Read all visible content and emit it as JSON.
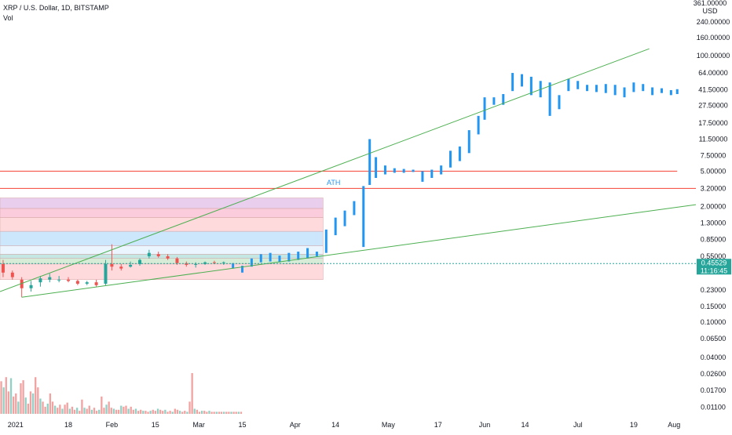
{
  "header": {
    "symbol_line": "XRP / U.S. Dollar, 1D, BITSTAMP",
    "volume_label": "Vol"
  },
  "price_scale": {
    "top_label_1": "361.00000",
    "top_label_2": "USD",
    "ticks": [
      "240.00000",
      "160.00000",
      "100.00000",
      "64.00000",
      "41.50000",
      "27.50000",
      "17.50000",
      "11.50000",
      "7.50000",
      "5.00000",
      "3.20000",
      "2.00000",
      "1.30000",
      "0.85000",
      "0.55000",
      "0.23000",
      "0.15000",
      "0.10000",
      "0.06500",
      "0.04000",
      "0.02600",
      "0.01700",
      "0.01100"
    ],
    "current_price": "0.45529",
    "countdown": "11:16:45"
  },
  "time_axis": {
    "ticks": [
      "2021",
      "18",
      "Feb",
      "15",
      "Mar",
      "15",
      "Apr",
      "14",
      "May",
      "17",
      "Jun",
      "14",
      "Jul",
      "19",
      "Aug"
    ]
  },
  "annotations": {
    "ath_label": "ATH"
  },
  "colors": {
    "up": "#26a69a",
    "down": "#ef5350",
    "projection": "#2196f3",
    "trend": "#4caf50",
    "level": "#f44336",
    "current_price_bg": "#26a69a",
    "vol_up": "#8fd1c5",
    "vol_down": "#f2a3a1"
  },
  "chart_data": {
    "type": "candlestick",
    "title": "XRP / U.S. Dollar, 1D, BITSTAMP",
    "y_scale": "log",
    "y_range": [
      0.0085,
      361
    ],
    "x_range": [
      "2020-12-27",
      "2021-08-08"
    ],
    "current_price": 0.45529,
    "grid": false,
    "candles": [
      {
        "date": "2020-12-28",
        "open": 0.45,
        "high": 0.5,
        "low": 0.32,
        "close": 0.36
      },
      {
        "date": "2020-12-31",
        "open": 0.36,
        "high": 0.38,
        "low": 0.3,
        "close": 0.32
      },
      {
        "date": "2021-01-03",
        "open": 0.3,
        "high": 0.32,
        "low": 0.19,
        "close": 0.24
      },
      {
        "date": "2021-01-06",
        "open": 0.24,
        "high": 0.29,
        "low": 0.22,
        "close": 0.26
      },
      {
        "date": "2021-01-09",
        "open": 0.28,
        "high": 0.33,
        "low": 0.25,
        "close": 0.31
      },
      {
        "date": "2021-01-12",
        "open": 0.3,
        "high": 0.35,
        "low": 0.28,
        "close": 0.32
      },
      {
        "date": "2021-01-15",
        "open": 0.3,
        "high": 0.33,
        "low": 0.28,
        "close": 0.3
      },
      {
        "date": "2021-01-18",
        "open": 0.3,
        "high": 0.32,
        "low": 0.28,
        "close": 0.29
      },
      {
        "date": "2021-01-21",
        "open": 0.29,
        "high": 0.3,
        "low": 0.26,
        "close": 0.27
      },
      {
        "date": "2021-01-24",
        "open": 0.27,
        "high": 0.29,
        "low": 0.26,
        "close": 0.28
      },
      {
        "date": "2021-01-27",
        "open": 0.28,
        "high": 0.3,
        "low": 0.25,
        "close": 0.26
      },
      {
        "date": "2021-01-30",
        "open": 0.27,
        "high": 0.5,
        "low": 0.26,
        "close": 0.45
      },
      {
        "date": "2021-02-01",
        "open": 0.45,
        "high": 0.75,
        "low": 0.38,
        "close": 0.42
      },
      {
        "date": "2021-02-04",
        "open": 0.42,
        "high": 0.45,
        "low": 0.38,
        "close": 0.4
      },
      {
        "date": "2021-02-07",
        "open": 0.42,
        "high": 0.48,
        "low": 0.41,
        "close": 0.44
      },
      {
        "date": "2021-02-10",
        "open": 0.45,
        "high": 0.52,
        "low": 0.43,
        "close": 0.5
      },
      {
        "date": "2021-02-13",
        "open": 0.55,
        "high": 0.65,
        "low": 0.52,
        "close": 0.6
      },
      {
        "date": "2021-02-16",
        "open": 0.58,
        "high": 0.62,
        "low": 0.53,
        "close": 0.55
      },
      {
        "date": "2021-02-19",
        "open": 0.55,
        "high": 0.58,
        "low": 0.5,
        "close": 0.52
      },
      {
        "date": "2021-02-22",
        "open": 0.52,
        "high": 0.54,
        "low": 0.44,
        "close": 0.46
      },
      {
        "date": "2021-02-25",
        "open": 0.46,
        "high": 0.48,
        "low": 0.42,
        "close": 0.44
      },
      {
        "date": "2021-02-28",
        "open": 0.44,
        "high": 0.47,
        "low": 0.41,
        "close": 0.45
      },
      {
        "date": "2021-03-03",
        "open": 0.45,
        "high": 0.48,
        "low": 0.44,
        "close": 0.47
      },
      {
        "date": "2021-03-06",
        "open": 0.47,
        "high": 0.49,
        "low": 0.45,
        "close": 0.46
      },
      {
        "date": "2021-03-09",
        "open": 0.46,
        "high": 0.48,
        "low": 0.44,
        "close": 0.47
      }
    ],
    "projection_bars": [
      {
        "date": "2021-03-12",
        "high": 0.46,
        "low": 0.4
      },
      {
        "date": "2021-03-15",
        "high": 0.43,
        "low": 0.36
      },
      {
        "date": "2021-03-18",
        "high": 0.52,
        "low": 0.42
      },
      {
        "date": "2021-03-21",
        "high": 0.58,
        "low": 0.47
      },
      {
        "date": "2021-03-24",
        "high": 0.6,
        "low": 0.48
      },
      {
        "date": "2021-03-27",
        "high": 0.56,
        "low": 0.47
      },
      {
        "date": "2021-03-30",
        "high": 0.6,
        "low": 0.48
      },
      {
        "date": "2021-04-02",
        "high": 0.62,
        "low": 0.5
      },
      {
        "date": "2021-04-05",
        "high": 0.68,
        "low": 0.52
      },
      {
        "date": "2021-04-08",
        "high": 0.62,
        "low": 0.55
      },
      {
        "date": "2021-04-11",
        "high": 1.1,
        "low": 0.6
      },
      {
        "date": "2021-04-14",
        "high": 1.5,
        "low": 0.95
      },
      {
        "date": "2021-04-17",
        "high": 1.8,
        "low": 1.2
      },
      {
        "date": "2021-04-20",
        "high": 2.3,
        "low": 1.6
      },
      {
        "date": "2021-04-23",
        "high": 3.4,
        "low": 0.7
      },
      {
        "date": "2021-04-25",
        "high": 11.5,
        "low": 3.5
      },
      {
        "date": "2021-04-27",
        "high": 7.2,
        "low": 4.2
      },
      {
        "date": "2021-04-30",
        "high": 5.8,
        "low": 4.6
      },
      {
        "date": "2021-05-03",
        "high": 5.4,
        "low": 4.8
      },
      {
        "date": "2021-05-06",
        "high": 5.3,
        "low": 4.8
      },
      {
        "date": "2021-05-09",
        "high": 5.2,
        "low": 4.9
      },
      {
        "date": "2021-05-12",
        "high": 5.0,
        "low": 3.8
      },
      {
        "date": "2021-05-15",
        "high": 5.2,
        "low": 4.2
      },
      {
        "date": "2021-05-18",
        "high": 5.8,
        "low": 4.6
      },
      {
        "date": "2021-05-21",
        "high": 8.5,
        "low": 5.5
      },
      {
        "date": "2021-05-24",
        "high": 9.5,
        "low": 6.5
      },
      {
        "date": "2021-05-27",
        "high": 14.5,
        "low": 8.0
      },
      {
        "date": "2021-05-30",
        "high": 21.0,
        "low": 13.0
      },
      {
        "date": "2021-06-01",
        "high": 34.0,
        "low": 19.0
      },
      {
        "date": "2021-06-04",
        "high": 34.0,
        "low": 28.0
      },
      {
        "date": "2021-06-07",
        "high": 37.0,
        "low": 28.0
      },
      {
        "date": "2021-06-10",
        "high": 64.0,
        "low": 40.0
      },
      {
        "date": "2021-06-13",
        "high": 62.0,
        "low": 45.0
      },
      {
        "date": "2021-06-16",
        "high": 58.0,
        "low": 36.0
      },
      {
        "date": "2021-06-19",
        "high": 52.0,
        "low": 34.0
      },
      {
        "date": "2021-06-22",
        "high": 50.0,
        "low": 21.0
      },
      {
        "date": "2021-06-25",
        "high": 36.0,
        "low": 25.0
      },
      {
        "date": "2021-06-28",
        "high": 55.0,
        "low": 40.0
      },
      {
        "date": "2021-07-01",
        "high": 52.0,
        "low": 42.0
      },
      {
        "date": "2021-07-04",
        "high": 47.0,
        "low": 40.0
      },
      {
        "date": "2021-07-07",
        "high": 47.0,
        "low": 39.0
      },
      {
        "date": "2021-07-10",
        "high": 48.0,
        "low": 38.0
      },
      {
        "date": "2021-07-13",
        "high": 47.0,
        "low": 36.0
      },
      {
        "date": "2021-07-16",
        "high": 44.0,
        "low": 34.0
      },
      {
        "date": "2021-07-19",
        "high": 50.0,
        "low": 39.0
      },
      {
        "date": "2021-07-22",
        "high": 48.0,
        "low": 40.0
      },
      {
        "date": "2021-07-25",
        "high": 44.0,
        "low": 36.0
      },
      {
        "date": "2021-07-28",
        "high": 43.0,
        "low": 38.0
      },
      {
        "date": "2021-07-31",
        "high": 41.0,
        "low": 36.0
      },
      {
        "date": "2021-08-02",
        "high": 42.0,
        "low": 37.0
      }
    ],
    "horizontal_lines": [
      {
        "price": 5.0,
        "from": "2020-12-27",
        "to": "2021-08-02"
      },
      {
        "price": 3.2,
        "from": "2020-12-27",
        "to": "2021-08-08"
      }
    ],
    "trend_lines": [
      {
        "from": {
          "date": "2020-12-27",
          "price": 0.22
        },
        "to": {
          "date": "2021-07-24",
          "price": 120
        }
      },
      {
        "from": {
          "date": "2021-01-03",
          "price": 0.19
        },
        "to": {
          "date": "2021-08-08",
          "price": 2.1
        }
      }
    ],
    "zones": [
      {
        "from": "2020-12-27",
        "to": "2021-04-10",
        "low": 1.9,
        "high": 2.5,
        "color": "#e1bee7"
      },
      {
        "from": "2020-12-27",
        "to": "2021-04-10",
        "low": 1.5,
        "high": 1.9,
        "color": "#f8bbd0"
      },
      {
        "from": "2020-12-27",
        "to": "2021-04-10",
        "low": 1.05,
        "high": 1.5,
        "color": "#ffcdd2"
      },
      {
        "from": "2020-12-27",
        "to": "2021-04-10",
        "low": 0.72,
        "high": 1.05,
        "color": "#bbdefb"
      },
      {
        "from": "2020-12-27",
        "to": "2021-04-10",
        "low": 0.58,
        "high": 0.72,
        "color": "#e3f2fd"
      },
      {
        "from": "2020-12-27",
        "to": "2021-04-10",
        "low": 0.52,
        "high": 0.58,
        "color": "#b2dfdb"
      },
      {
        "from": "2020-12-27",
        "to": "2021-04-10",
        "low": 0.45,
        "high": 0.52,
        "color": "#c8e6c9"
      },
      {
        "from": "2020-12-27",
        "to": "2021-04-10",
        "low": 0.3,
        "high": 0.45,
        "color": "#ffcdd2"
      }
    ],
    "volume_values": [
      0.32,
      0.26,
      0.36,
      0.22,
      0.35,
      0.17,
      0.2,
      0.12,
      0.3,
      0.33,
      0.16,
      0.1,
      0.22,
      0.2,
      0.36,
      0.26,
      0.15,
      0.12,
      0.07,
      0.1,
      0.2,
      0.12,
      0.08,
      0.06,
      0.09,
      0.05,
      0.09,
      0.11,
      0.05,
      0.07,
      0.04,
      0.06,
      0.03,
      0.14,
      0.06,
      0.05,
      0.08,
      0.04,
      0.06,
      0.03,
      0.04,
      0.17,
      0.06,
      0.09,
      0.12,
      0.06,
      0.05,
      0.04,
      0.04,
      0.08,
      0.07,
      0.08,
      0.05,
      0.07,
      0.04,
      0.05,
      0.03,
      0.04,
      0.03,
      0.03,
      0.02,
      0.03,
      0.04,
      0.03,
      0.05,
      0.04,
      0.03,
      0.04,
      0.02,
      0.03,
      0.02,
      0.05,
      0.04,
      0.03,
      0.02,
      0.03,
      0.02,
      0.12,
      0.4,
      0.05,
      0.04,
      0.02,
      0.03,
      0.03,
      0.02,
      0.03,
      0.02,
      0.02,
      0.02,
      0.02,
      0.02,
      0.02,
      0.02,
      0.02,
      0.02,
      0.02,
      0.02,
      0.02,
      0.02
    ]
  }
}
